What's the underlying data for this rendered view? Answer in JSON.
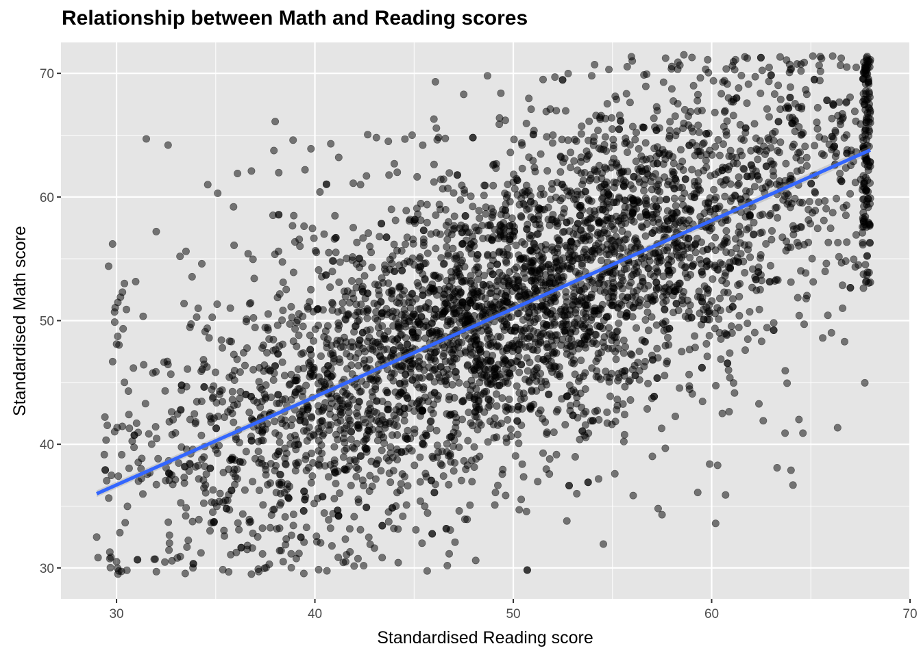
{
  "chart_data": {
    "type": "scatter",
    "title": "Relationship between Math and Reading scores",
    "xlabel": "Standardised Reading score",
    "ylabel": "Standardised Math score",
    "xlim": [
      27.2,
      70.0
    ],
    "ylim": [
      27.5,
      72.5
    ],
    "x_ticks": [
      30,
      40,
      50,
      60,
      70
    ],
    "y_ticks": [
      30,
      40,
      50,
      60,
      70
    ],
    "grid": true,
    "panel_background": "#e5e5e5",
    "grid_color": "#ffffff",
    "point_color": "#000000",
    "point_alpha": 0.5,
    "n_points": 4500,
    "points": [
      [
        29.0,
        32.5
      ],
      [
        29.6,
        54.4
      ],
      [
        29.8,
        56.2
      ],
      [
        29.9,
        50.7
      ],
      [
        30.0,
        48.1
      ],
      [
        30.0,
        30.5
      ],
      [
        30.2,
        51.9
      ],
      [
        30.3,
        52.3
      ],
      [
        30.4,
        53.0
      ],
      [
        30.5,
        50.9
      ],
      [
        30.6,
        44.3
      ],
      [
        31.5,
        64.7
      ],
      [
        32.0,
        57.2
      ],
      [
        32.6,
        64.2
      ],
      [
        33.2,
        55.2
      ],
      [
        33.5,
        55.6
      ],
      [
        34.3,
        54.6
      ],
      [
        34.6,
        61.0
      ],
      [
        35.1,
        60.3
      ],
      [
        36.1,
        61.9
      ],
      [
        36.8,
        62.1
      ],
      [
        36.8,
        29.5
      ],
      [
        37.7,
        30.3
      ],
      [
        38.0,
        66.1
      ],
      [
        38.3,
        31.4
      ],
      [
        38.9,
        64.6
      ],
      [
        39.5,
        62.2
      ],
      [
        39.8,
        63.9
      ],
      [
        40.8,
        64.3
      ],
      [
        41.2,
        63.2
      ],
      [
        42.6,
        61.7
      ],
      [
        43.0,
        31.6
      ],
      [
        43.1,
        64.8
      ],
      [
        43.7,
        64.5
      ],
      [
        44.9,
        65.0
      ],
      [
        45.4,
        32.0
      ],
      [
        46.0,
        66.3
      ],
      [
        47.5,
        68.3
      ],
      [
        48.7,
        69.8
      ],
      [
        49.1,
        36.1
      ],
      [
        49.6,
        66.2
      ],
      [
        50.3,
        34.7
      ],
      [
        50.9,
        67.1
      ],
      [
        51.5,
        69.5
      ],
      [
        52.0,
        65.0
      ],
      [
        52.1,
        69.7
      ],
      [
        52.7,
        33.8
      ],
      [
        53.2,
        36.0
      ],
      [
        54.1,
        70.7
      ],
      [
        54.3,
        37.2
      ],
      [
        55.2,
        67.9
      ],
      [
        56.0,
        71.0
      ],
      [
        57.3,
        34.8
      ],
      [
        57.5,
        34.3
      ],
      [
        58.3,
        70.9
      ],
      [
        58.6,
        71.5
      ],
      [
        59.3,
        36.1
      ],
      [
        59.8,
        71.1
      ],
      [
        59.9,
        38.4
      ],
      [
        60.2,
        33.6
      ],
      [
        60.3,
        38.3
      ],
      [
        60.7,
        35.9
      ],
      [
        61.2,
        71.1
      ],
      [
        62.6,
        41.9
      ],
      [
        63.3,
        38.1
      ],
      [
        63.7,
        40.9
      ],
      [
        64.0,
        37.9
      ],
      [
        64.1,
        36.7
      ],
      [
        64.4,
        42.0
      ],
      [
        64.6,
        40.9
      ],
      [
        65.1,
        71.4
      ],
      [
        65.6,
        48.6
      ],
      [
        66.1,
        71.4
      ],
      [
        66.6,
        51.0
      ],
      [
        66.7,
        48.3
      ],
      [
        67.4,
        54.5
      ],
      [
        67.6,
        57.1
      ],
      [
        67.8,
        53.2
      ],
      [
        68.0,
        53.1
      ],
      [
        68.0,
        59.9
      ],
      [
        68.0,
        66.0
      ],
      [
        68.0,
        71.1
      ]
    ],
    "trend_line": {
      "x": [
        29.0,
        68.0
      ],
      "y": [
        36.0,
        63.8
      ],
      "color": "#3366ff"
    }
  }
}
